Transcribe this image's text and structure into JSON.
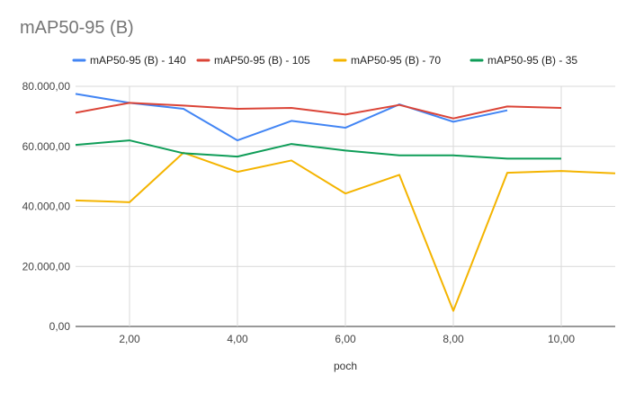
{
  "chart_data": {
    "type": "line",
    "title": "mAP50-95 (B)",
    "xlabel": "poch",
    "ylabel": "",
    "xlim": [
      1,
      11
    ],
    "ylim": [
      0,
      80000
    ],
    "x_ticks": [
      2,
      4,
      6,
      8,
      10
    ],
    "x_tick_labels": [
      "2,00",
      "4,00",
      "6,00",
      "8,00",
      "10,00"
    ],
    "y_ticks": [
      0,
      20000,
      40000,
      60000,
      80000
    ],
    "y_tick_labels": [
      "0,00",
      "20.000,00",
      "40.000,00",
      "60.000,00",
      "80.000,00"
    ],
    "grid": true,
    "legend_position": "top",
    "series": [
      {
        "name": "mAP50-95 (B) - 140",
        "color": "#4285F4",
        "x": [
          1,
          2,
          3,
          4,
          5,
          6,
          7,
          8,
          9
        ],
        "values": [
          77500,
          74500,
          72500,
          62000,
          68500,
          66200,
          74000,
          68200,
          72000
        ]
      },
      {
        "name": "mAP50-95 (B) - 105",
        "color": "#DB4437",
        "x": [
          1,
          2,
          3,
          4,
          5,
          6,
          7,
          8,
          9,
          10
        ],
        "values": [
          71200,
          74500,
          73600,
          72500,
          72800,
          70600,
          73800,
          69300,
          73300,
          72800
        ]
      },
      {
        "name": "mAP50-95 (B) - 70",
        "color": "#F4B400",
        "x": [
          1,
          2,
          3,
          4,
          5,
          6,
          7,
          8,
          9,
          10,
          11
        ],
        "values": [
          42000,
          41400,
          57900,
          51500,
          55300,
          44300,
          50500,
          5200,
          51200,
          51800,
          51000
        ]
      },
      {
        "name": "mAP50-95 (B) - 35",
        "color": "#0F9D58",
        "x": [
          1,
          2,
          3,
          4,
          5,
          6,
          7,
          8,
          9,
          10
        ],
        "values": [
          60500,
          62000,
          57700,
          56600,
          60800,
          58600,
          57000,
          57000,
          55900,
          55900
        ]
      }
    ]
  }
}
